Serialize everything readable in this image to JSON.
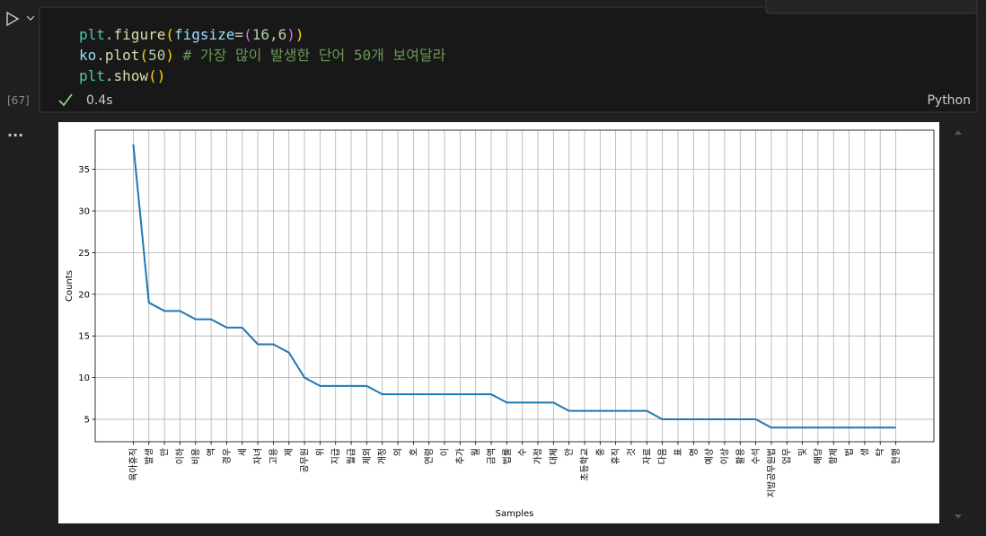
{
  "cell": {
    "execution_count": "[67]",
    "code_lines": [
      [
        {
          "t": "plt",
          "c": "#4ec9b0"
        },
        {
          "t": ".",
          "c": "#cccccc"
        },
        {
          "t": "figure",
          "c": "#dcdcaa"
        },
        {
          "t": "(",
          "c": "#ffd700"
        },
        {
          "t": "figsize",
          "c": "#9cdcfe"
        },
        {
          "t": "=",
          "c": "#cccccc"
        },
        {
          "t": "(",
          "c": "#da70d6"
        },
        {
          "t": "16",
          "c": "#b5cea8"
        },
        {
          "t": ",",
          "c": "#cccccc"
        },
        {
          "t": "6",
          "c": "#b5cea8"
        },
        {
          "t": ")",
          "c": "#da70d6"
        },
        {
          "t": ")",
          "c": "#ffd700"
        }
      ],
      [
        {
          "t": "ko",
          "c": "#9cdcfe"
        },
        {
          "t": ".",
          "c": "#cccccc"
        },
        {
          "t": "plot",
          "c": "#dcdcaa"
        },
        {
          "t": "(",
          "c": "#ffd700"
        },
        {
          "t": "50",
          "c": "#b5cea8"
        },
        {
          "t": ")",
          "c": "#ffd700"
        },
        {
          "t": " # 가장 많이 발생한 단어 50개 보여달라",
          "c": "#6a9955"
        }
      ],
      [
        {
          "t": "plt",
          "c": "#4ec9b0"
        },
        {
          "t": ".",
          "c": "#cccccc"
        },
        {
          "t": "show",
          "c": "#dcdcaa"
        },
        {
          "t": "(",
          "c": "#ffd700"
        },
        {
          "t": ")",
          "c": "#ffd700"
        }
      ]
    ],
    "status_time": "0.4s",
    "language": "Python",
    "output_menu": "..."
  },
  "chart_data": {
    "type": "line",
    "xlabel": "Samples",
    "ylabel": "Counts",
    "color": "#1f77b4",
    "grid": true,
    "categories": [
      "육아휴직",
      "발생",
      "만",
      "이하",
      "비용",
      "액",
      "경우",
      "세",
      "자녀",
      "고용",
      "제",
      "공무원",
      "위",
      "지급",
      "월급",
      "제외",
      "개정",
      "의",
      "호",
      "연령",
      "이",
      "추가",
      "월",
      "금액",
      "법률",
      "수",
      "가정",
      "대체",
      "안",
      "초등학교",
      "중",
      "휴직",
      "것",
      "자료",
      "다음",
      "표",
      "명",
      "예상",
      "이상",
      "활용",
      "수석",
      "지방공무원법",
      "업무",
      "및",
      "해당",
      "항제",
      "법",
      "생",
      "탁",
      "현행"
    ],
    "values": [
      38,
      19,
      18,
      18,
      17,
      17,
      16,
      16,
      14,
      14,
      13,
      10,
      9,
      9,
      9,
      9,
      8,
      8,
      8,
      8,
      8,
      8,
      8,
      8,
      7,
      7,
      7,
      7,
      6,
      6,
      6,
      6,
      6,
      6,
      5,
      5,
      5,
      5,
      5,
      5,
      5,
      4,
      4,
      4,
      4,
      4,
      4,
      4,
      4,
      4
    ],
    "ylim": [
      2.3,
      39.7
    ],
    "yticks": [
      5,
      10,
      15,
      20,
      25,
      30,
      35
    ]
  }
}
